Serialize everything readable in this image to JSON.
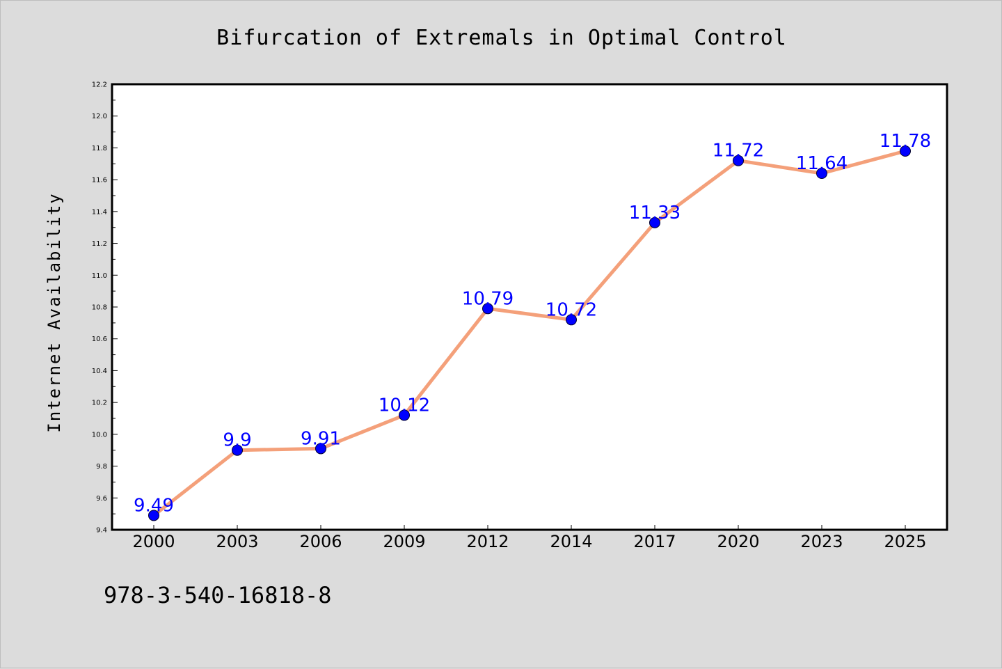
{
  "chart_data": {
    "type": "line",
    "title": "Bifurcation of Extremals in Optimal Control",
    "xlabel": "",
    "ylabel": "Internet Availability",
    "categories": [
      "2000",
      "2003",
      "2006",
      "2009",
      "2012",
      "2014",
      "2017",
      "2020",
      "2023",
      "2025"
    ],
    "series": [
      {
        "values": [
          9.49,
          9.9,
          9.91,
          10.12,
          10.79,
          10.72,
          11.33,
          11.72,
          11.64,
          11.78
        ]
      }
    ],
    "data_labels": [
      "9.49",
      "9.9",
      "9.91",
      "10.12",
      "10.79",
      "10.72",
      "11.33",
      "11.72",
      "11.64",
      "11.78"
    ],
    "ylim": [
      9.4,
      12.2
    ],
    "yticks": [
      "9.4",
      "9.6",
      "9.8",
      "10.0",
      "10.2",
      "10.4",
      "10.6",
      "10.8",
      "11.0",
      "11.2",
      "11.4",
      "11.6",
      "11.8",
      "12.0",
      "12.2"
    ],
    "grid": false,
    "legend": "none",
    "colors": {
      "line": "#f4a07a",
      "marker": "#0000ff",
      "label": "#0000ff",
      "background": "#dcdcdc",
      "plot_area": "#ffffff"
    }
  },
  "footnote": "978-3-540-16818-8"
}
